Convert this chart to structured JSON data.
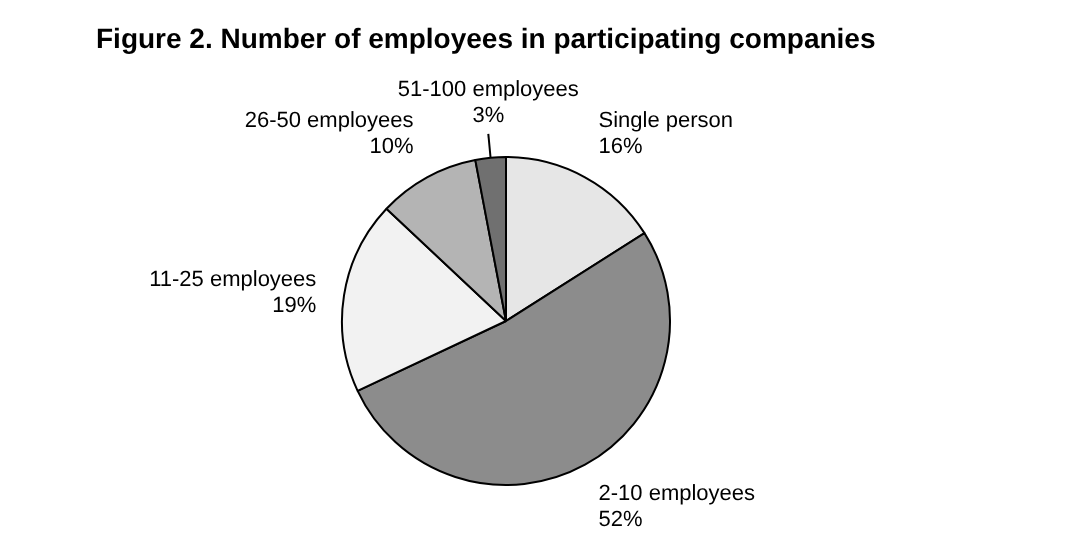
{
  "chart_data": {
    "type": "pie",
    "title": "Figure 2. Number of employees in participating companies",
    "categories": [
      "Single person",
      "2-10 employees",
      "11-25 employees",
      "26-50 employees",
      "51-100 employees"
    ],
    "values": [
      16,
      52,
      19,
      10,
      3
    ],
    "value_labels": [
      "16%",
      "52%",
      "19%",
      "10%",
      "3%"
    ],
    "colors": [
      "#e6e6e6",
      "#8c8c8c",
      "#f2f2f2",
      "#b4b4b4",
      "#707070"
    ],
    "legend": false
  }
}
